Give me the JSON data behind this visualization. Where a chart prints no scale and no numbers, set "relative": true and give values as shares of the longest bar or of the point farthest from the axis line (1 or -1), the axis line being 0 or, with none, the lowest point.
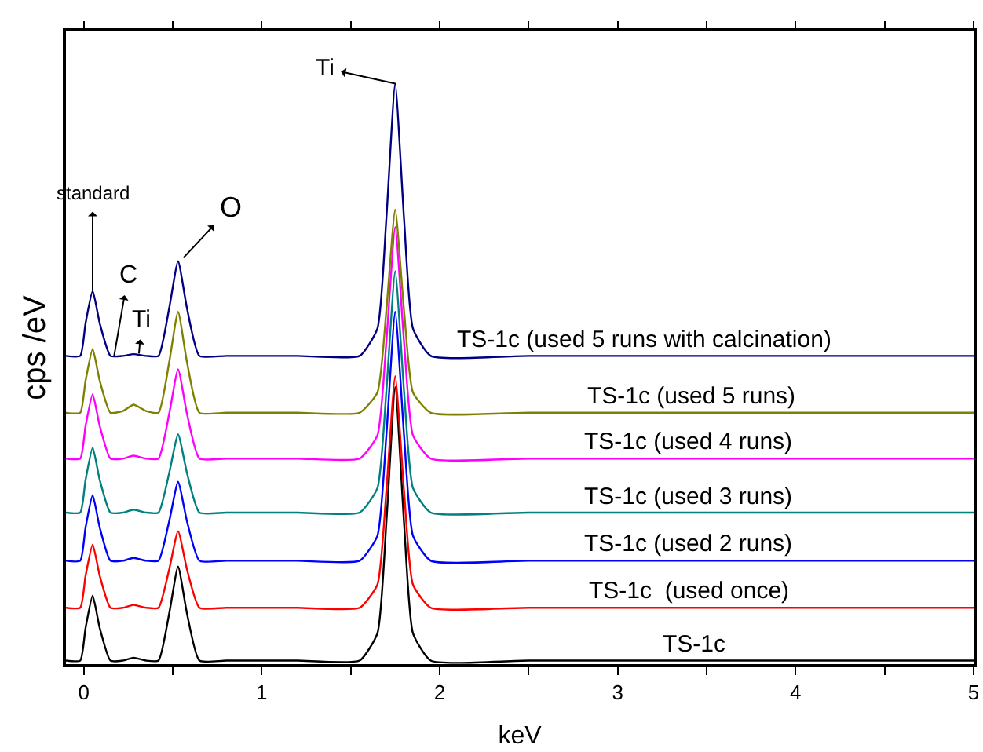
{
  "chart_data": {
    "type": "line",
    "relative": true,
    "xlabel": "keV",
    "ylabel": "cps /eV",
    "x": [
      -0.1,
      -0.02,
      0.01,
      0.05,
      0.09,
      0.15,
      0.22,
      0.28,
      0.35,
      0.42,
      0.48,
      0.53,
      0.58,
      0.65,
      0.8,
      1.2,
      1.55,
      1.65,
      1.7,
      1.75,
      1.8,
      1.85,
      1.95,
      2.5,
      4.5,
      5.0
    ],
    "xlim": [
      -0.1,
      5
    ],
    "xticks": [
      0,
      {
        "value": 0.5,
        "label": null
      },
      1,
      {
        "value": 1.5,
        "label": null
      },
      2,
      {
        "value": 2.5,
        "label": null
      },
      3,
      {
        "value": 3.5,
        "label": null
      },
      4,
      {
        "value": 4.5,
        "label": null
      },
      5
    ],
    "legend": false,
    "marker": "none",
    "line_style": "solid",
    "series": [
      {
        "name": "TS-1c",
        "color": "#000000",
        "values": [
          0.006,
          0.006,
          0.062,
          0.118,
          0.062,
          0.006,
          0.006,
          0.011,
          0.006,
          0.006,
          0.087,
          0.168,
          0.087,
          0.006,
          0.006,
          0.006,
          0.006,
          0.053,
          0.242,
          0.477,
          0.242,
          0.053,
          0.006,
          0.006,
          0.006,
          0.006
        ]
      },
      {
        "name": "TS-1c  (used once)",
        "color": "#ff0000",
        "values": [
          0.097,
          0.097,
          0.152,
          0.206,
          0.152,
          0.097,
          0.097,
          0.102,
          0.097,
          0.097,
          0.163,
          0.229,
          0.163,
          0.097,
          0.097,
          0.097,
          0.097,
          0.137,
          0.297,
          0.496,
          0.297,
          0.137,
          0.097,
          0.097,
          0.097,
          0.097
        ]
      },
      {
        "name": "TS-1c (used 2 runs)",
        "color": "#0000ff",
        "values": [
          0.178,
          0.178,
          0.235,
          0.291,
          0.235,
          0.178,
          0.178,
          0.183,
          0.178,
          0.178,
          0.246,
          0.314,
          0.246,
          0.178,
          0.178,
          0.178,
          0.178,
          0.221,
          0.393,
          0.607,
          0.393,
          0.221,
          0.178,
          0.178,
          0.178,
          0.178
        ]
      },
      {
        "name": "TS-1c (used 3 runs)",
        "color": "#008080",
        "values": [
          0.261,
          0.261,
          0.317,
          0.373,
          0.317,
          0.261,
          0.261,
          0.266,
          0.261,
          0.261,
          0.329,
          0.396,
          0.329,
          0.261,
          0.261,
          0.261,
          0.261,
          0.303,
          0.469,
          0.677,
          0.469,
          0.303,
          0.261,
          0.261,
          0.261,
          0.261
        ]
      },
      {
        "name": "TS-1c (used 4 runs)",
        "color": "#ff00ff",
        "values": [
          0.354,
          0.354,
          0.41,
          0.465,
          0.41,
          0.354,
          0.354,
          0.359,
          0.354,
          0.354,
          0.431,
          0.508,
          0.431,
          0.354,
          0.354,
          0.354,
          0.354,
          0.394,
          0.554,
          0.753,
          0.554,
          0.394,
          0.354,
          0.354,
          0.354,
          0.354
        ]
      },
      {
        "name": "TS-1c (used 5 runs)",
        "color": "#808000",
        "values": [
          0.433,
          0.433,
          0.488,
          0.543,
          0.488,
          0.433,
          0.436,
          0.447,
          0.436,
          0.433,
          0.52,
          0.607,
          0.52,
          0.433,
          0.433,
          0.433,
          0.433,
          0.468,
          0.608,
          0.783,
          0.608,
          0.468,
          0.433,
          0.433,
          0.433,
          0.433
        ]
      },
      {
        "name": "TS-1c (used 5 runs with calcination)",
        "color": "#000080",
        "values": [
          0.531,
          0.531,
          0.587,
          0.643,
          0.587,
          0.531,
          0.531,
          0.534,
          0.531,
          0.531,
          0.613,
          0.694,
          0.613,
          0.531,
          0.531,
          0.531,
          0.531,
          0.578,
          0.766,
          1.0,
          0.766,
          0.578,
          0.531,
          0.531,
          0.531,
          0.531
        ]
      }
    ],
    "annotations": [
      {
        "text": "standard",
        "x": 0.05,
        "y": 0.643
      },
      {
        "text": "C",
        "x": 0.17,
        "y": 0.53
      },
      {
        "text": "Ti",
        "x": 0.31,
        "y": 0.535
      },
      {
        "text": "O",
        "x": 0.56,
        "y": 0.7
      },
      {
        "text": "Ti",
        "x": 1.75,
        "y": 1.0
      }
    ]
  }
}
